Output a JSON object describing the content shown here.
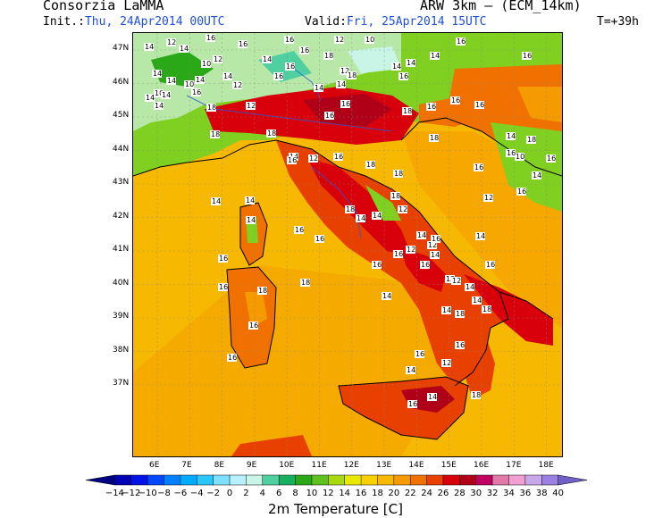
{
  "header": {
    "source": "Consorzia LaMMA",
    "model": "ARW 3km – (ECM_14km)",
    "init_label": "Init.:",
    "init_value": "Thu, 24Apr2014 00UTC",
    "valid_label": "Valid:",
    "valid_value": "Fri, 25Apr2014 15UTC",
    "lead": "T=+39h"
  },
  "map": {
    "lat_labels": [
      "47N",
      "46N",
      "45N",
      "44N",
      "43N",
      "42N",
      "41N",
      "40N",
      "39N",
      "38N",
      "37N"
    ],
    "lon_labels": [
      "6E",
      "7E",
      "8E",
      "9E",
      "10E",
      "11E",
      "12E",
      "13E",
      "14E",
      "15E",
      "16E",
      "17E",
      "18E"
    ],
    "station_values": [
      "16",
      "12",
      "16",
      "14",
      "16",
      "12",
      "10",
      "16",
      "14",
      "16",
      "18",
      "12",
      "10",
      "18",
      "14",
      "14",
      "14",
      "16",
      "16",
      "14",
      "12",
      "10",
      "14",
      "14",
      "10",
      "14",
      "14",
      "16",
      "12",
      "14",
      "14",
      "14",
      "16",
      "18",
      "18",
      "16",
      "14",
      "14",
      "12",
      "18",
      "14",
      "16",
      "16",
      "12",
      "18",
      "18",
      "18",
      "18",
      "16",
      "16",
      "16",
      "14",
      "14",
      "14",
      "14",
      "12",
      "12",
      "16",
      "12",
      "12",
      "12",
      "14",
      "16",
      "14",
      "12",
      "14",
      "18",
      "16",
      "14",
      "16",
      "14",
      "18",
      "14",
      "16",
      "14",
      "16",
      "12",
      "18",
      "14",
      "16",
      "14",
      "10",
      "18",
      "16",
      "16",
      "14",
      "16",
      "16",
      "18",
      "16",
      "18",
      "16",
      "16",
      "16",
      "16",
      "14",
      "14",
      "16",
      "18",
      "18",
      "16",
      "16",
      "16"
    ],
    "colors": {
      "sea": "#f6b800",
      "sea_north": "#f8bd00",
      "land_hot": "#d8000a",
      "land_warm": "#f06000",
      "land_mild": "#f59a00",
      "land_cool": "#7fd020",
      "land_cold": "#b8e8a8",
      "coast": "#000000",
      "rivers": "#2a5bd7"
    }
  },
  "colorbar": {
    "title": "2m Temperature [C]",
    "ticks": [
      "−14",
      "−12",
      "−10",
      "−8",
      "−6",
      "−4",
      "−2",
      "0",
      "2",
      "4",
      "6",
      "8",
      "10",
      "12",
      "14",
      "16",
      "18",
      "20",
      "22",
      "24",
      "26",
      "28",
      "30",
      "32",
      "34",
      "36",
      "38",
      "40"
    ],
    "colors": [
      "#000080",
      "#0000b4",
      "#0012e6",
      "#0048ff",
      "#0080ff",
      "#00aaff",
      "#28c8ff",
      "#7ee0ff",
      "#b8f0ff",
      "#c8f5e6",
      "#50d0a0",
      "#18b060",
      "#2aa818",
      "#60c020",
      "#a8d810",
      "#e8e800",
      "#f8d000",
      "#f6b800",
      "#f59a00",
      "#f07000",
      "#e84000",
      "#d8000a",
      "#b00018",
      "#c00060",
      "#e078a8",
      "#f0a0d0",
      "#c8a8e8",
      "#9a80e0",
      "#7060c8"
    ]
  }
}
